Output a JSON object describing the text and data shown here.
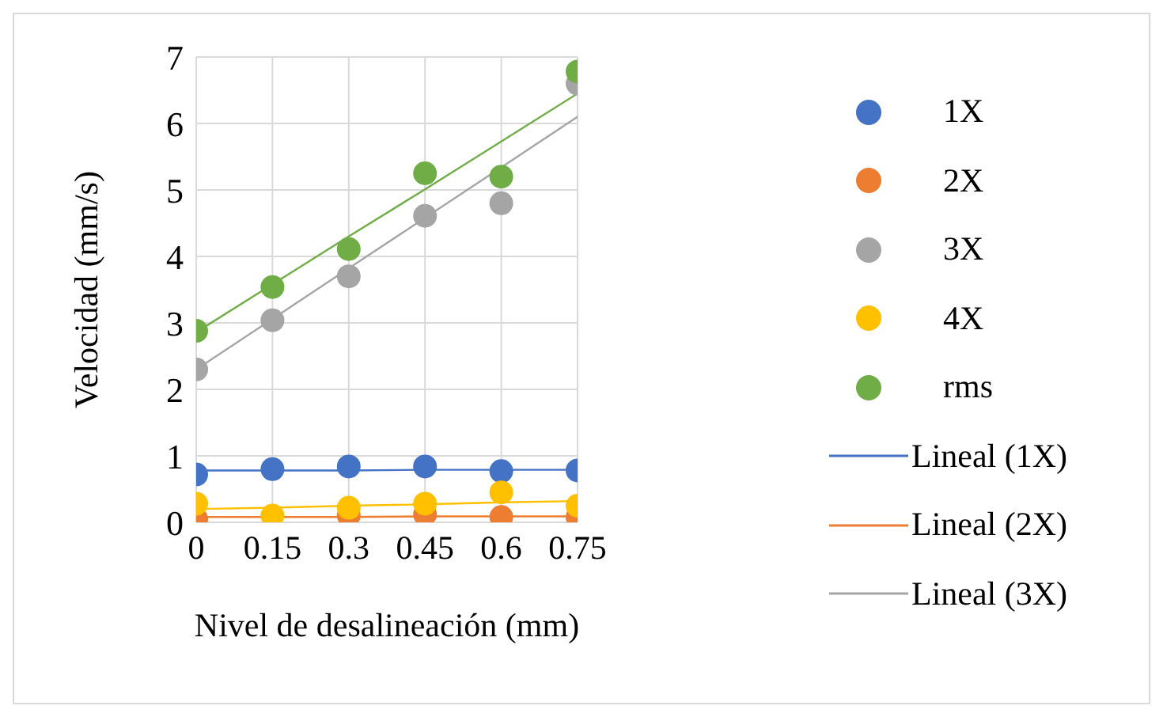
{
  "chart_data": {
    "type": "scatter",
    "xlabel": "Nivel de desalineación (mm)",
    "ylabel": "Velocidad (mm/s)",
    "x": [
      0,
      0.15,
      0.3,
      0.45,
      0.6,
      0.75
    ],
    "xlim": [
      0,
      0.75
    ],
    "xticks": [
      0,
      0.15,
      0.3,
      0.45,
      0.6,
      0.75
    ],
    "ylim": [
      0,
      7
    ],
    "yticks": [
      0,
      1,
      2,
      3,
      4,
      5,
      6,
      7
    ],
    "grid": true,
    "legend": "right",
    "marker": "circle",
    "series": [
      {
        "name": "1X",
        "color": "#4472c4",
        "values": [
          0.72,
          0.8,
          0.84,
          0.84,
          0.77,
          0.78
        ]
      },
      {
        "name": "2X",
        "color": "#ed7d31",
        "values": [
          0.05,
          null,
          0.1,
          0.12,
          0.08,
          0.08
        ]
      },
      {
        "name": "3X",
        "color": "#a5a5a5",
        "values": [
          2.3,
          3.04,
          3.7,
          4.61,
          4.8,
          6.6
        ]
      },
      {
        "name": "4X",
        "color": "#ffc000",
        "values": [
          0.28,
          0.1,
          0.22,
          0.28,
          0.45,
          0.25
        ]
      },
      {
        "name": "rms",
        "color": "#70ad47",
        "values": [
          2.88,
          3.54,
          4.11,
          5.25,
          5.2,
          6.78
        ]
      },
      {
        "name": "Lineal (1X)",
        "type": "line",
        "marker": "none",
        "color": "#4472c4",
        "values": [
          0.78,
          0.78,
          0.78,
          0.79,
          0.79,
          0.79
        ]
      },
      {
        "name": "Lineal (2X)",
        "type": "line",
        "marker": "none",
        "color": "#ed7d31",
        "values": [
          0.08,
          0.08,
          0.08,
          0.09,
          0.09,
          0.09
        ]
      },
      {
        "name": "Lineal (3X)",
        "type": "line",
        "marker": "none",
        "color": "#a5a5a5",
        "values": [
          2.3,
          3.06,
          3.82,
          4.58,
          5.34,
          6.1
        ]
      },
      {
        "type": "line",
        "marker": "none",
        "color": "#ffc000",
        "values": [
          0.2,
          0.22,
          0.25,
          0.27,
          0.3,
          0.32
        ]
      },
      {
        "type": "line",
        "marker": "none",
        "color": "#70ad47",
        "values": [
          2.86,
          3.58,
          4.3,
          5.01,
          5.73,
          6.45
        ]
      }
    ]
  }
}
